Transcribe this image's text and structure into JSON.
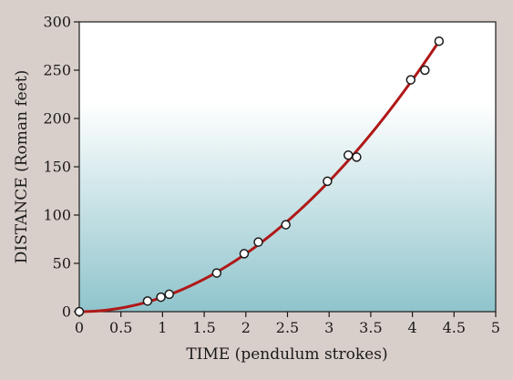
{
  "chart_data": {
    "type": "scatter",
    "title": "",
    "xlabel": "TIME (pendulum strokes)",
    "ylabel": "DISTANCE (Roman feet)",
    "xlim": [
      0,
      5
    ],
    "ylim": [
      0,
      300
    ],
    "x_ticks": [
      0,
      0.5,
      1,
      1.5,
      2,
      2.5,
      3,
      3.5,
      4,
      4.5,
      5
    ],
    "x_tick_labels": [
      "0",
      "0.5",
      "1",
      "1.5",
      "2",
      "2.5",
      "3",
      "3.5",
      "4",
      "4.5",
      "5"
    ],
    "y_ticks": [
      0,
      50,
      100,
      150,
      200,
      250,
      300
    ],
    "y_tick_labels": [
      "0",
      "50",
      "100",
      "150",
      "200",
      "250",
      "300"
    ],
    "grid": false,
    "legend": "none",
    "points": [
      {
        "x": 0,
        "y": 0
      },
      {
        "x": 0.82,
        "y": 11
      },
      {
        "x": 0.98,
        "y": 15
      },
      {
        "x": 1.08,
        "y": 18
      },
      {
        "x": 1.65,
        "y": 40
      },
      {
        "x": 1.98,
        "y": 60
      },
      {
        "x": 2.15,
        "y": 72
      },
      {
        "x": 2.48,
        "y": 90
      },
      {
        "x": 2.98,
        "y": 135
      },
      {
        "x": 3.23,
        "y": 162
      },
      {
        "x": 3.33,
        "y": 160
      },
      {
        "x": 3.98,
        "y": 240
      },
      {
        "x": 4.15,
        "y": 250
      },
      {
        "x": 4.32,
        "y": 280
      }
    ],
    "fit_curve": {
      "kind": "quadratic",
      "coefficient": 15,
      "x_range": [
        0,
        4.32
      ]
    },
    "colors": {
      "curve": "#b01818",
      "point_fill": "#ffffff",
      "point_stroke": "#1a1a1a",
      "plot_top": "#ffffff",
      "plot_bottom": "#8fc4cc",
      "background": "#d9cfca"
    }
  }
}
